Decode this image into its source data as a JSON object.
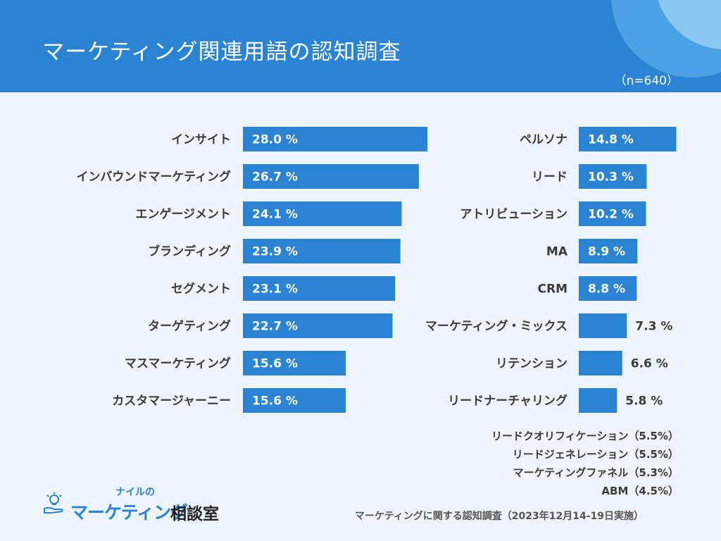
{
  "header": {
    "title": "マーケティング関連用語の認知調査",
    "sample_size": "（n=640）"
  },
  "chart_data": {
    "type": "bar",
    "orientation": "horizontal",
    "title": "マーケティング関連用語の認知調査",
    "unit": "%",
    "xlim": [
      0,
      30
    ],
    "groups": [
      {
        "categories": [
          "インサイト",
          "インバウンドマーケティング",
          "エンゲージメント",
          "ブランディング",
          "セグメント",
          "ターゲティング",
          "マスマーケティング",
          "カスタマージャーニー"
        ],
        "values": [
          28.0,
          26.7,
          24.1,
          23.9,
          23.1,
          22.7,
          15.6,
          15.6
        ],
        "labels": [
          "28.0 %",
          "26.7 %",
          "24.1 %",
          "23.9 %",
          "23.1 %",
          "22.7 %",
          "15.6 %",
          "15.6 %"
        ]
      },
      {
        "categories": [
          "ペルソナ",
          "リード",
          "アトリビューション",
          "MA",
          "CRM",
          "マーケティング・ミックス",
          "リテンション",
          "リードナーチャリング"
        ],
        "values": [
          14.8,
          10.3,
          10.2,
          8.9,
          8.8,
          7.3,
          6.6,
          5.8
        ],
        "labels": [
          "14.8 %",
          "10.3 %",
          "10.2 %",
          "8.9 %",
          "8.8 %",
          "7.3 %",
          "6.6 %",
          "5.8 %"
        ]
      }
    ],
    "bar_color": "#2a83d3"
  },
  "others": [
    "リードクオリフィケーション（5.5%）",
    "リードジェネレーション（5.5%）",
    "マーケティングファネル（5.3%）",
    "ABM（4.5%）"
  ],
  "source": "マーケティングに関する認知調査（2023年12月14-19日実施）",
  "logo": {
    "small_text": "ナイルの",
    "main_text": "マーケティング",
    "kanji_text": "相談室",
    "icon": "lightbulb-hand-icon"
  }
}
